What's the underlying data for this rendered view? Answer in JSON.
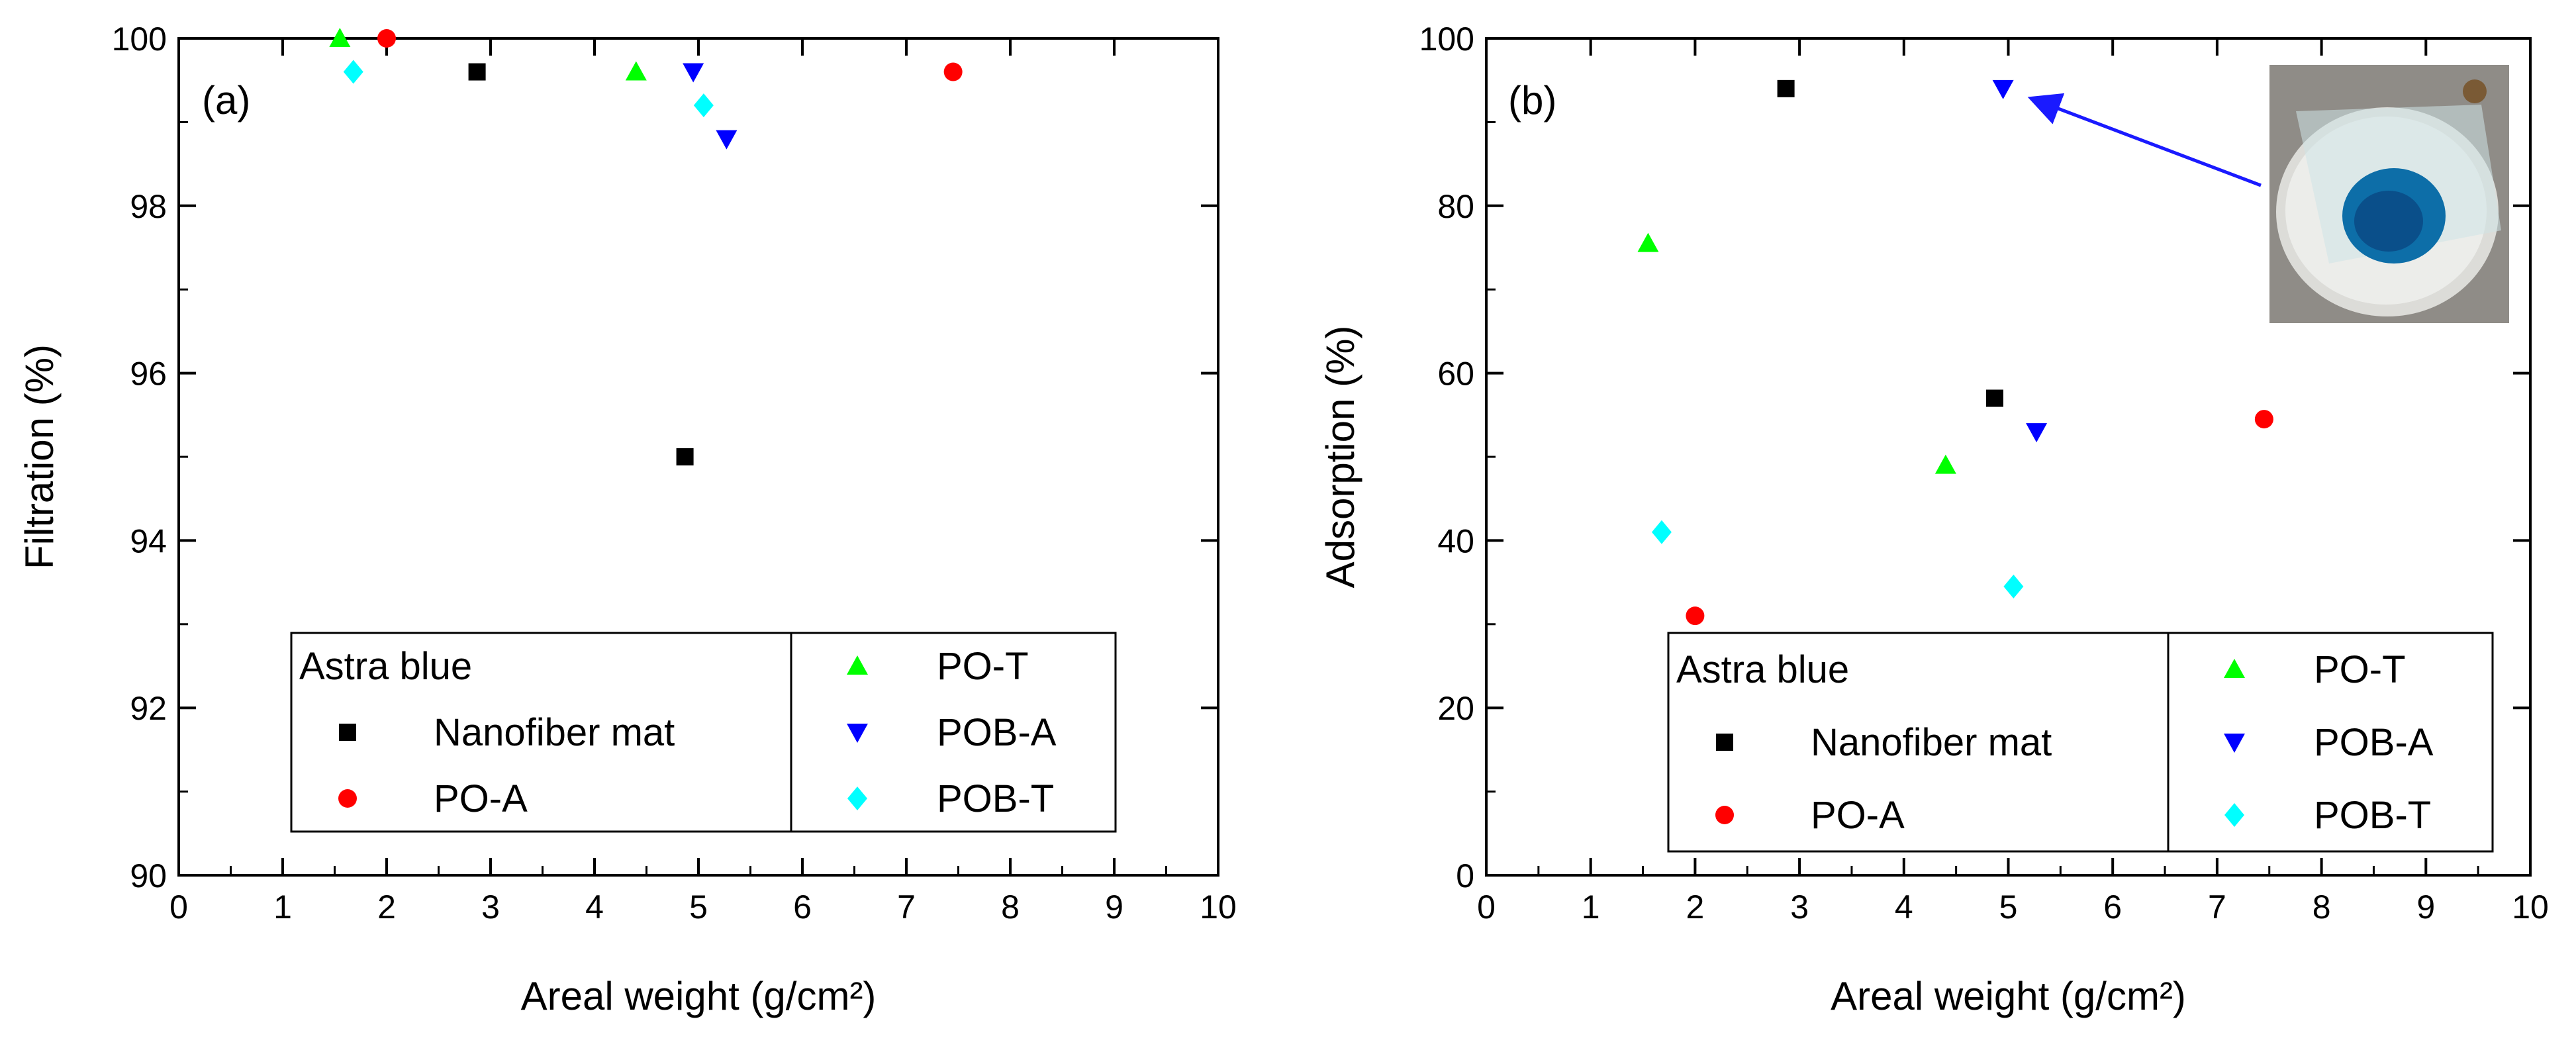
{
  "chart_data": [
    {
      "type": "scatter",
      "panel_label": "(a)",
      "title": "",
      "xlabel": "Areal weight (g/cm²)",
      "ylabel": "Filtration (%)",
      "xlim": [
        0,
        10
      ],
      "ylim": [
        90,
        100
      ],
      "xticks": [
        "0",
        "1",
        "2",
        "3",
        "4",
        "5",
        "6",
        "7",
        "8",
        "9",
        "10"
      ],
      "yticks": [
        "90",
        "92",
        "94",
        "96",
        "98",
        "100"
      ],
      "grid": false,
      "legend_placement": "bottom-center",
      "legend_title": "Astra blue",
      "series": [
        {
          "name": "Nanofiber mat",
          "marker": "square",
          "color": "#000000",
          "points": [
            [
              2.87,
              99.6
            ],
            [
              4.87,
              95.0
            ]
          ]
        },
        {
          "name": "PO-A",
          "marker": "circle",
          "color": "#ff0000",
          "points": [
            [
              2.0,
              100.0
            ],
            [
              7.45,
              99.6
            ]
          ]
        },
        {
          "name": "PO-T",
          "marker": "triangle-up",
          "color": "#00ff00",
          "points": [
            [
              1.55,
              100.0
            ],
            [
              4.4,
              99.6
            ]
          ]
        },
        {
          "name": "POB-A",
          "marker": "triangle-down",
          "color": "#0000ff",
          "points": [
            [
              4.95,
              99.6
            ],
            [
              5.27,
              98.8
            ]
          ]
        },
        {
          "name": "POB-T",
          "marker": "diamond",
          "color": "#00ffff",
          "points": [
            [
              1.68,
              99.6
            ],
            [
              5.05,
              99.2
            ]
          ]
        }
      ]
    },
    {
      "type": "scatter",
      "panel_label": "(b)",
      "title": "",
      "xlabel": "Areal weight (g/cm²)",
      "ylabel": "Adsorption (%)",
      "xlim": [
        0,
        10
      ],
      "ylim": [
        0,
        100
      ],
      "xticks": [
        "0",
        "1",
        "2",
        "3",
        "4",
        "5",
        "6",
        "7",
        "8",
        "9",
        "10"
      ],
      "yticks": [
        "0",
        "20",
        "40",
        "60",
        "80",
        "100"
      ],
      "grid": false,
      "legend_placement": "bottom-center",
      "legend_title": "Astra blue",
      "inset_image": "photo of nanofiber mat with blue stained spot",
      "annotation": "arrow pointing from inset photo to POB-A point",
      "series": [
        {
          "name": "Nanofiber mat",
          "marker": "square",
          "color": "#000000",
          "points": [
            [
              2.87,
              94.0
            ],
            [
              4.87,
              57.0
            ]
          ]
        },
        {
          "name": "PO-A",
          "marker": "circle",
          "color": "#ff0000",
          "points": [
            [
              2.0,
              31.0
            ],
            [
              7.45,
              54.5
            ]
          ]
        },
        {
          "name": "PO-T",
          "marker": "triangle-up",
          "color": "#00ff00",
          "points": [
            [
              1.55,
              75.5
            ],
            [
              4.4,
              49.0
            ]
          ]
        },
        {
          "name": "POB-A",
          "marker": "triangle-down",
          "color": "#0000ff",
          "points": [
            [
              4.95,
              94.0
            ],
            [
              5.27,
              53.0
            ]
          ]
        },
        {
          "name": "POB-T",
          "marker": "diamond",
          "color": "#00ffff",
          "points": [
            [
              1.68,
              41.0
            ],
            [
              5.05,
              34.5
            ]
          ]
        }
      ]
    }
  ]
}
